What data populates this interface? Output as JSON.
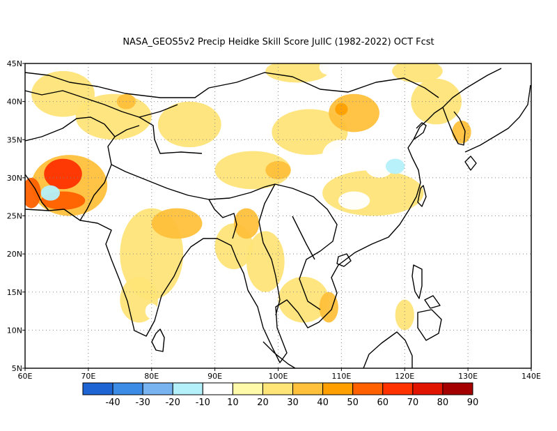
{
  "title": "NASA_GEOS5v2 Precip Heidke Skill Score JulIC (1982-2022) OCT Fcst",
  "map": {
    "lon_range": [
      60,
      140
    ],
    "lat_range": [
      5,
      45
    ],
    "lon_ticks": [
      "60E",
      "70E",
      "80E",
      "90E",
      "100E",
      "110E",
      "120E",
      "130E",
      "140E"
    ],
    "lat_ticks": [
      "5N",
      "10N",
      "15N",
      "20N",
      "25N",
      "30N",
      "35N",
      "40N",
      "45N"
    ],
    "grid": true
  },
  "colorbar": {
    "colors": [
      "#1e64d2",
      "#3c8ce6",
      "#78b4f0",
      "#b4f0fa",
      "#ffffff",
      "#fffaaa",
      "#ffe478",
      "#ffc03c",
      "#ffa000",
      "#ff6000",
      "#ff3200",
      "#e11400",
      "#a50000"
    ],
    "labels": [
      "-40",
      "-30",
      "-20",
      "-10",
      "10",
      "20",
      "30",
      "40",
      "50",
      "60",
      "70",
      "80",
      "90"
    ]
  },
  "chart_data": {
    "type": "heatmap",
    "variable": "Precip Heidke Skill Score",
    "xlim": [
      60,
      140
    ],
    "ylim": [
      5,
      45
    ],
    "levels": [
      -40,
      -30,
      -20,
      -10,
      10,
      20,
      30,
      40,
      50,
      60,
      70,
      80,
      90
    ],
    "regions": [
      {
        "lon": 66,
        "lat": 30.5,
        "r_lon": 3,
        "r_lat": 2,
        "value": 60
      },
      {
        "lon": 66,
        "lat": 27,
        "r_lon": 3.5,
        "r_lat": 1.2,
        "value": 50
      },
      {
        "lon": 61,
        "lat": 28,
        "r_lon": 1.5,
        "r_lat": 2,
        "value": 50
      },
      {
        "lon": 67,
        "lat": 29,
        "r_lon": 6,
        "r_lat": 4,
        "value": 30
      },
      {
        "lon": 64,
        "lat": 28,
        "r_lon": 1.5,
        "r_lat": 1,
        "value": -20
      },
      {
        "lon": 75,
        "lat": 26,
        "r_lon": 2,
        "r_lat": 2.5,
        "value": -10
      },
      {
        "lon": 84,
        "lat": 24,
        "r_lon": 4,
        "r_lat": 2,
        "value": 30
      },
      {
        "lon": 80,
        "lat": 20,
        "r_lon": 5,
        "r_lat": 6,
        "value": 20
      },
      {
        "lon": 78,
        "lat": 14,
        "r_lon": 3,
        "r_lat": 3,
        "value": 20
      },
      {
        "lon": 80,
        "lat": 12.5,
        "r_lon": 1,
        "r_lat": 1,
        "value": -10
      },
      {
        "lon": 95,
        "lat": 24,
        "r_lon": 2,
        "r_lat": 2,
        "value": 30
      },
      {
        "lon": 93,
        "lat": 21,
        "r_lon": 3,
        "r_lat": 3,
        "value": 20
      },
      {
        "lon": 98,
        "lat": 19,
        "r_lon": 3,
        "r_lat": 4,
        "value": 20
      },
      {
        "lon": 104,
        "lat": 14,
        "r_lon": 4,
        "r_lat": 3,
        "value": 20
      },
      {
        "lon": 108,
        "lat": 13,
        "r_lon": 1.5,
        "r_lat": 2,
        "value": 30
      },
      {
        "lon": 115,
        "lat": 28,
        "r_lon": 8,
        "r_lat": 3,
        "value": 20
      },
      {
        "lon": 112,
        "lat": 38.5,
        "r_lon": 4,
        "r_lat": 2.5,
        "value": 30
      },
      {
        "lon": 110,
        "lat": 39,
        "r_lon": 1,
        "r_lat": 0.8,
        "value": 40
      },
      {
        "lon": 105,
        "lat": 36,
        "r_lon": 6,
        "r_lat": 3,
        "value": 20
      },
      {
        "lon": 96,
        "lat": 31,
        "r_lon": 6,
        "r_lat": 2.5,
        "value": 20
      },
      {
        "lon": 100,
        "lat": 31,
        "r_lon": 2,
        "r_lat": 1.2,
        "value": 30
      },
      {
        "lon": 86,
        "lat": 37,
        "r_lon": 5,
        "r_lat": 3,
        "value": 20
      },
      {
        "lon": 74,
        "lat": 38,
        "r_lon": 6,
        "r_lat": 3,
        "value": 20
      },
      {
        "lon": 66,
        "lat": 41,
        "r_lon": 5,
        "r_lat": 3,
        "value": 20
      },
      {
        "lon": 76,
        "lat": 40,
        "r_lon": 1.5,
        "r_lat": 1,
        "value": 30
      },
      {
        "lon": 125,
        "lat": 40,
        "r_lon": 4,
        "r_lat": 3,
        "value": 20
      },
      {
        "lon": 129,
        "lat": 36,
        "r_lon": 1.5,
        "r_lat": 1.5,
        "value": 30
      },
      {
        "lon": 122,
        "lat": 44,
        "r_lon": 4,
        "r_lat": 1.5,
        "value": 20
      },
      {
        "lon": 103,
        "lat": 44,
        "r_lon": 5,
        "r_lat": 1.5,
        "value": 20
      },
      {
        "lon": 110,
        "lat": 33,
        "r_lon": 3,
        "r_lat": 2,
        "value": -10
      },
      {
        "lon": 116,
        "lat": 32,
        "r_lon": 2.5,
        "r_lat": 2,
        "value": -10
      },
      {
        "lon": 118.5,
        "lat": 31.5,
        "r_lon": 1.5,
        "r_lat": 1,
        "value": -20
      },
      {
        "lon": 112,
        "lat": 27,
        "r_lon": 2.5,
        "r_lat": 1.2,
        "value": -10
      },
      {
        "lon": 108,
        "lat": 44.5,
        "r_lon": 1.5,
        "r_lat": 1,
        "value": -10
      },
      {
        "lon": 96,
        "lat": 43,
        "r_lon": 1.5,
        "r_lat": 1,
        "value": -10
      },
      {
        "lon": 88,
        "lat": 41,
        "r_lon": 2,
        "r_lat": 1.2,
        "value": -10
      },
      {
        "lon": 75,
        "lat": 33.5,
        "r_lon": 1.5,
        "r_lat": 1.5,
        "value": -10
      },
      {
        "lon": 101,
        "lat": 26.5,
        "r_lon": 2,
        "r_lat": 1,
        "value": -10
      },
      {
        "lon": 120,
        "lat": 12,
        "r_lon": 1.5,
        "r_lat": 2,
        "value": 20
      },
      {
        "lon": 138,
        "lat": 36,
        "r_lon": 2,
        "r_lat": 2,
        "value": -10
      }
    ]
  }
}
